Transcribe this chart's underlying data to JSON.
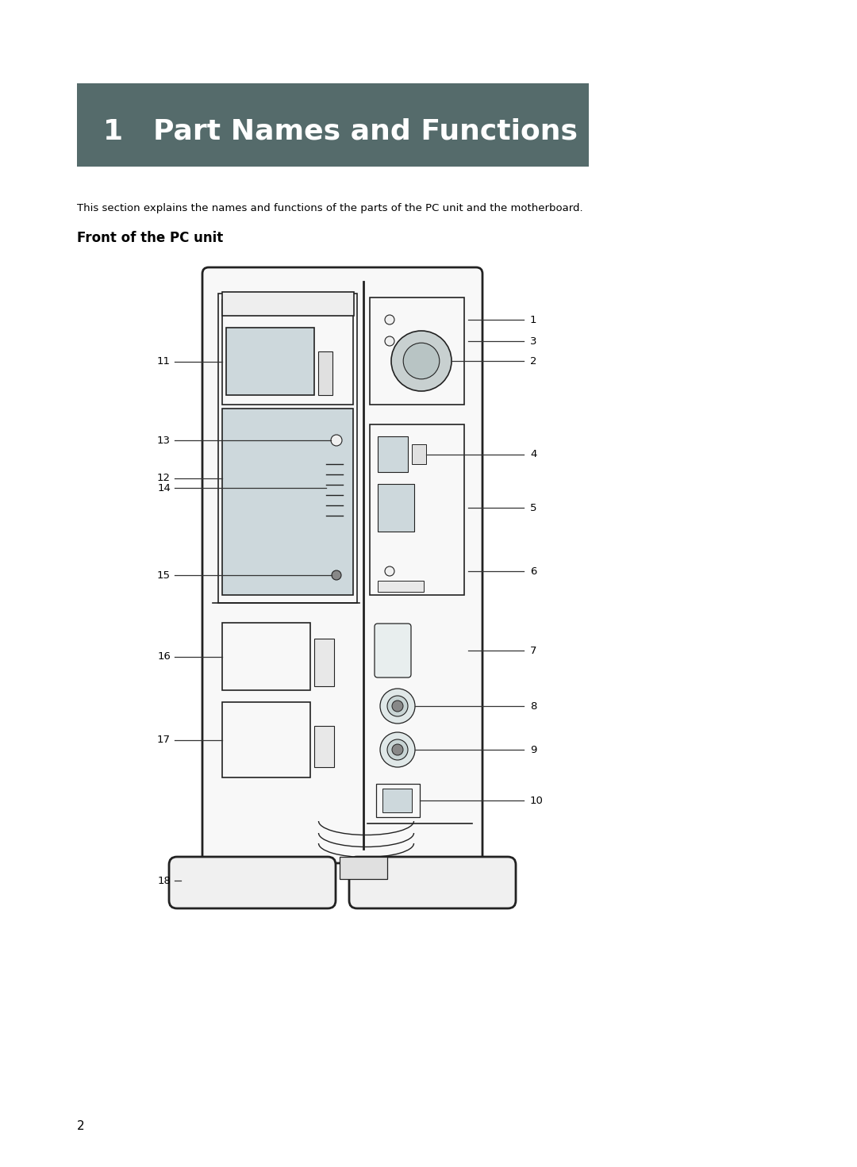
{
  "page_bg": "#ffffff",
  "header_bg": "#556b6b",
  "header_text": "1   Part Names and Functions",
  "header_text_color": "#ffffff",
  "header_fontsize": 26,
  "body_text": "This section explains the names and functions of the parts of the PC unit and the motherboard.",
  "body_fontsize": 9.5,
  "section_title": "Front of the PC unit",
  "section_fontsize": 12,
  "page_number": "2",
  "label_color": "#000000",
  "line_color": "#333333",
  "outline_color": "#222222",
  "fill_light": "#cdd8dc",
  "fill_white": "#f8f8f8"
}
